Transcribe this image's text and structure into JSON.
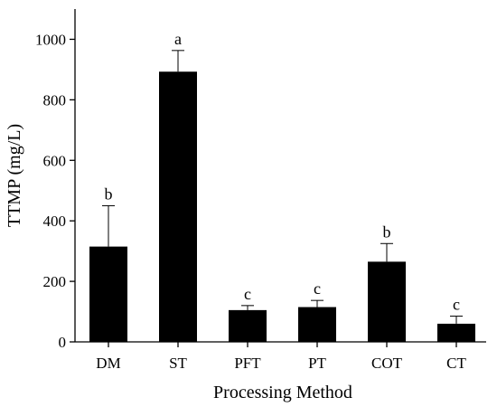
{
  "chart_data": {
    "type": "bar",
    "categories": [
      "DM",
      "ST",
      "PFT",
      "PT",
      "COT",
      "CT"
    ],
    "values": [
      315,
      893,
      105,
      115,
      265,
      60
    ],
    "errors": [
      135,
      70,
      15,
      22,
      60,
      25
    ],
    "letters": [
      "b",
      "a",
      "c",
      "c",
      "b",
      "c"
    ],
    "xlabel": "Processing Method",
    "ylabel": "TTMP (mg/L)",
    "ylim": [
      0,
      1100
    ],
    "yticks": [
      0,
      200,
      400,
      600,
      800,
      1000
    ],
    "grid": false,
    "bar_color": "#000000"
  }
}
